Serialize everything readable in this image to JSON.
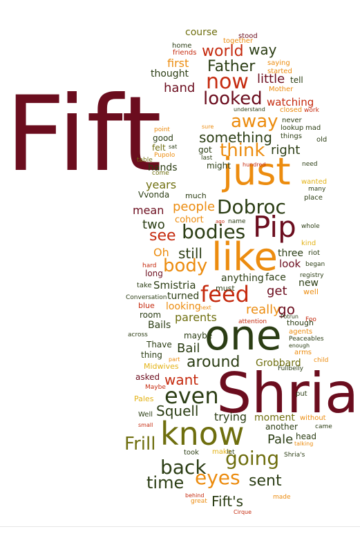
{
  "palette": {
    "maroon": "#6b0d1e",
    "red": "#c52a0e",
    "orange": "#ec8c0f",
    "olive": "#6e6e0e",
    "darkgreen": "#2b3d14",
    "gold": "#e3b215",
    "background": "#ffffff"
  },
  "words": [
    {
      "text": "Fift",
      "color": "maroon"
    },
    {
      "text": "Shria",
      "color": "maroon"
    },
    {
      "text": "one",
      "color": "darkgreen"
    },
    {
      "text": "like",
      "color": "orange"
    },
    {
      "text": "just",
      "color": "orange"
    },
    {
      "text": "know",
      "color": "olive"
    },
    {
      "text": "Pip",
      "color": "maroon"
    },
    {
      "text": "bodies",
      "color": "darkgreen"
    },
    {
      "text": "Dobroc",
      "color": "darkgreen"
    },
    {
      "text": "feed",
      "color": "red"
    },
    {
      "text": "going",
      "color": "olive"
    },
    {
      "text": "eyes",
      "color": "orange"
    },
    {
      "text": "even",
      "color": "darkgreen"
    },
    {
      "text": "now",
      "color": "red"
    },
    {
      "text": "looked",
      "color": "maroon"
    },
    {
      "text": "Father",
      "color": "darkgreen"
    },
    {
      "text": "back",
      "color": "darkgreen"
    },
    {
      "text": "time",
      "color": "darkgreen"
    },
    {
      "text": "sent",
      "color": "darkgreen"
    },
    {
      "text": "Frill",
      "color": "olive"
    },
    {
      "text": "body",
      "color": "orange"
    },
    {
      "text": "think",
      "color": "orange"
    },
    {
      "text": "away",
      "color": "orange"
    },
    {
      "text": "something",
      "color": "darkgreen"
    },
    {
      "text": "world",
      "color": "red"
    },
    {
      "text": "way",
      "color": "darkgreen"
    },
    {
      "text": "around",
      "color": "darkgreen"
    },
    {
      "text": "want",
      "color": "red"
    },
    {
      "text": "Squell",
      "color": "darkgreen"
    },
    {
      "text": "Fift's",
      "color": "darkgreen"
    },
    {
      "text": "Pale",
      "color": "darkgreen"
    },
    {
      "text": "right",
      "color": "darkgreen"
    },
    {
      "text": "hand",
      "color": "maroon"
    },
    {
      "text": "little",
      "color": "maroon"
    },
    {
      "text": "watching",
      "color": "red"
    },
    {
      "text": "mean",
      "color": "maroon"
    },
    {
      "text": "two",
      "color": "darkgreen"
    },
    {
      "text": "see",
      "color": "red"
    },
    {
      "text": "people",
      "color": "orange"
    },
    {
      "text": "still",
      "color": "darkgreen"
    },
    {
      "text": "really",
      "color": "orange"
    },
    {
      "text": "get",
      "color": "maroon"
    },
    {
      "text": "go",
      "color": "maroon"
    },
    {
      "text": "parents",
      "color": "olive"
    },
    {
      "text": "Bail",
      "color": "darkgreen"
    },
    {
      "text": "first",
      "color": "orange"
    },
    {
      "text": "course",
      "color": "olive"
    },
    {
      "text": "years",
      "color": "olive"
    },
    {
      "text": "hands",
      "color": "darkgreen"
    },
    {
      "text": "cohort",
      "color": "orange"
    },
    {
      "text": "Oh",
      "color": "orange"
    },
    {
      "text": "trying",
      "color": "darkgreen"
    },
    {
      "text": "moment",
      "color": "olive"
    },
    {
      "text": "Grobbard",
      "color": "olive"
    },
    {
      "text": "face",
      "color": "darkgreen"
    },
    {
      "text": "look",
      "color": "maroon"
    },
    {
      "text": "three",
      "color": "darkgreen"
    },
    {
      "text": "Smistria",
      "color": "darkgreen"
    },
    {
      "text": "anything",
      "color": "darkgreen"
    },
    {
      "text": "thought",
      "color": "darkgreen"
    },
    {
      "text": "felt",
      "color": "olive"
    },
    {
      "text": "got",
      "color": "darkgreen"
    },
    {
      "text": "might",
      "color": "darkgreen"
    },
    {
      "text": "good",
      "color": "darkgreen"
    },
    {
      "text": "Vvonda",
      "color": "darkgreen"
    },
    {
      "text": "much",
      "color": "darkgreen"
    },
    {
      "text": "turned",
      "color": "darkgreen"
    },
    {
      "text": "room",
      "color": "darkgreen"
    },
    {
      "text": "Bails",
      "color": "darkgreen"
    },
    {
      "text": "maybe",
      "color": "darkgreen"
    },
    {
      "text": "Thave",
      "color": "darkgreen"
    },
    {
      "text": "thing",
      "color": "darkgreen"
    },
    {
      "text": "asked",
      "color": "maroon"
    },
    {
      "text": "took",
      "color": "darkgreen"
    },
    {
      "text": "head",
      "color": "darkgreen"
    },
    {
      "text": "another",
      "color": "darkgreen"
    },
    {
      "text": "must",
      "color": "darkgreen"
    },
    {
      "text": "new",
      "color": "darkgreen"
    },
    {
      "text": "long",
      "color": "maroon"
    },
    {
      "text": "take",
      "color": "darkgreen"
    },
    {
      "text": "home",
      "color": "darkgreen"
    },
    {
      "text": "stood",
      "color": "maroon"
    },
    {
      "text": "together",
      "color": "orange"
    },
    {
      "text": "friends",
      "color": "red"
    },
    {
      "text": "saying",
      "color": "orange"
    },
    {
      "text": "started",
      "color": "orange"
    },
    {
      "text": "tell",
      "color": "darkgreen"
    },
    {
      "text": "Mother",
      "color": "orange"
    },
    {
      "text": "understand",
      "color": "darkgreen"
    },
    {
      "text": "closed",
      "color": "orange"
    },
    {
      "text": "work",
      "color": "red"
    },
    {
      "text": "never",
      "color": "darkgreen"
    },
    {
      "text": "lookup",
      "color": "darkgreen"
    },
    {
      "text": "mad",
      "color": "darkgreen"
    },
    {
      "text": "things",
      "color": "darkgreen"
    },
    {
      "text": "old",
      "color": "darkgreen"
    },
    {
      "text": "sure",
      "color": "orange"
    },
    {
      "text": "point",
      "color": "orange"
    },
    {
      "text": "sat",
      "color": "darkgreen"
    },
    {
      "text": "Pupolo",
      "color": "orange"
    },
    {
      "text": "table",
      "color": "olive"
    },
    {
      "text": "last",
      "color": "darkgreen"
    },
    {
      "text": "come",
      "color": "olive"
    },
    {
      "text": "hundred",
      "color": "red"
    },
    {
      "text": "need",
      "color": "darkgreen"
    },
    {
      "text": "wanted",
      "color": "gold"
    },
    {
      "text": "many",
      "color": "darkgreen"
    },
    {
      "text": "place",
      "color": "darkgreen"
    },
    {
      "text": "ago",
      "color": "red"
    },
    {
      "text": "name",
      "color": "darkgreen"
    },
    {
      "text": "whole",
      "color": "darkgreen"
    },
    {
      "text": "kind",
      "color": "gold"
    },
    {
      "text": "riot",
      "color": "darkgreen"
    },
    {
      "text": "began",
      "color": "darkgreen"
    },
    {
      "text": "hard",
      "color": "red"
    },
    {
      "text": "registry",
      "color": "darkgreen"
    },
    {
      "text": "well",
      "color": "orange"
    },
    {
      "text": "Conversation",
      "color": "darkgreen"
    },
    {
      "text": "blue",
      "color": "red"
    },
    {
      "text": "looking",
      "color": "orange"
    },
    {
      "text": "next",
      "color": "orange"
    },
    {
      "text": "Foo",
      "color": "red"
    },
    {
      "text": "Potrun",
      "color": "darkgreen"
    },
    {
      "text": "attention",
      "color": "red"
    },
    {
      "text": "though",
      "color": "darkgreen"
    },
    {
      "text": "agents",
      "color": "orange"
    },
    {
      "text": "across",
      "color": "darkgreen"
    },
    {
      "text": "Peaceables",
      "color": "darkgreen"
    },
    {
      "text": "enough",
      "color": "darkgreen"
    },
    {
      "text": "arms",
      "color": "orange"
    },
    {
      "text": "part",
      "color": "orange"
    },
    {
      "text": "Fullbelly",
      "color": "darkgreen"
    },
    {
      "text": "child",
      "color": "orange"
    },
    {
      "text": "Midwives",
      "color": "gold"
    },
    {
      "text": "Maybe",
      "color": "red"
    },
    {
      "text": "put",
      "color": "darkgreen"
    },
    {
      "text": "Pales",
      "color": "gold"
    },
    {
      "text": "Well",
      "color": "darkgreen"
    },
    {
      "text": "small",
      "color": "red"
    },
    {
      "text": "without",
      "color": "orange"
    },
    {
      "text": "came",
      "color": "darkgreen"
    },
    {
      "text": "talking",
      "color": "orange"
    },
    {
      "text": "make",
      "color": "gold"
    },
    {
      "text": "let",
      "color": "darkgreen"
    },
    {
      "text": "Shria's",
      "color": "darkgreen"
    },
    {
      "text": "behind",
      "color": "red"
    },
    {
      "text": "great",
      "color": "orange"
    },
    {
      "text": "made",
      "color": "orange"
    },
    {
      "text": "Cirque",
      "color": "red"
    }
  ]
}
